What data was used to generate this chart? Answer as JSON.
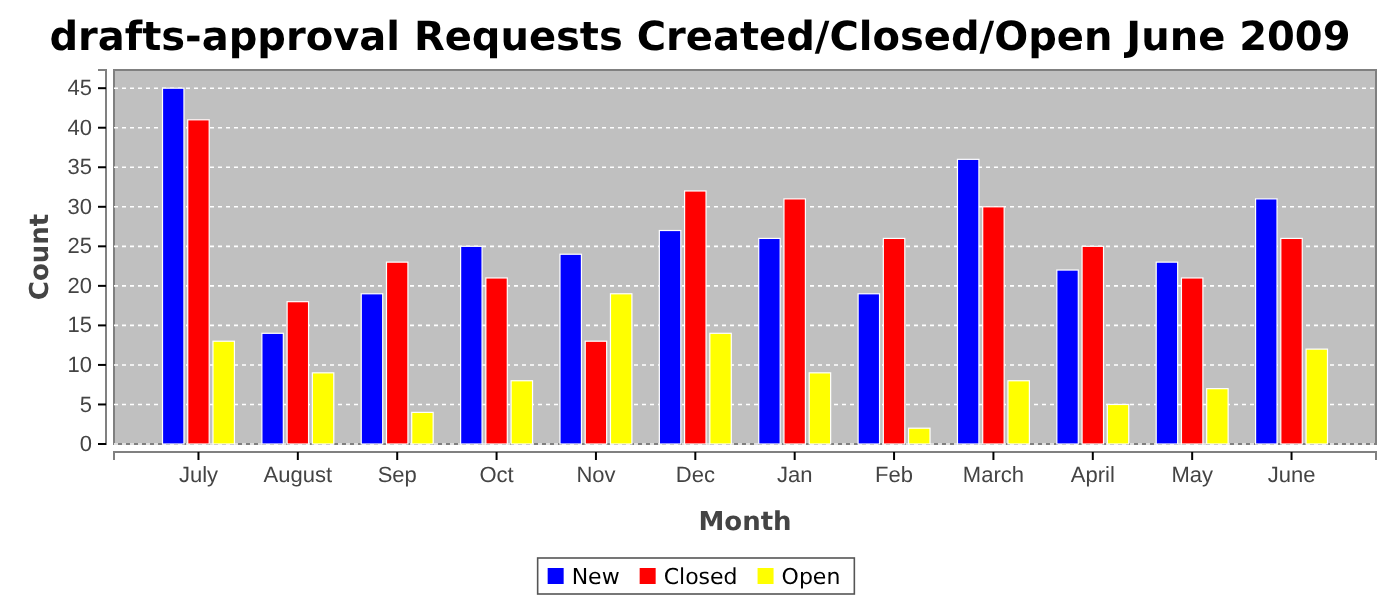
{
  "chart_data": {
    "type": "bar",
    "title": "drafts-approval Requests Created/Closed/Open June 2009",
    "xlabel": "Month",
    "ylabel": "Count",
    "categories": [
      "July",
      "August",
      "Sep",
      "Oct",
      "Nov",
      "Dec",
      "Jan",
      "Feb",
      "March",
      "April",
      "May",
      "June"
    ],
    "series": [
      {
        "name": "New",
        "color": "#0000ff",
        "values": [
          45,
          14,
          19,
          25,
          24,
          27,
          26,
          19,
          36,
          22,
          23,
          31
        ]
      },
      {
        "name": "Closed",
        "color": "#ff0000",
        "values": [
          41,
          18,
          23,
          21,
          13,
          32,
          31,
          26,
          30,
          25,
          21,
          26
        ]
      },
      {
        "name": "Open",
        "color": "#ffff00",
        "values": [
          13,
          9,
          4,
          8,
          19,
          14,
          9,
          2,
          8,
          5,
          7,
          12
        ]
      }
    ],
    "ylim": [
      0,
      47.3
    ],
    "yticks": [
      0,
      5,
      10,
      15,
      20,
      25,
      30,
      35,
      40,
      45
    ],
    "grid": "y",
    "legend": "bottom"
  }
}
